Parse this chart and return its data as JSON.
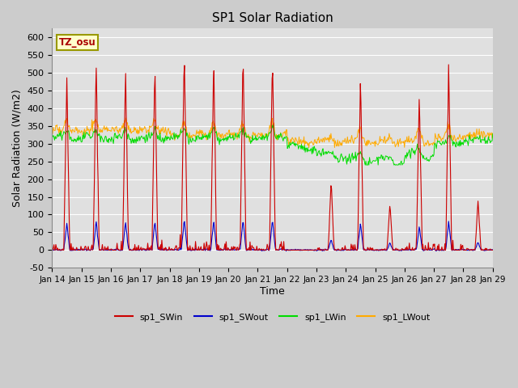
{
  "title": "SP1 Solar Radiation",
  "ylabel": "Solar Radiation (W/m2)",
  "xlabel": "Time",
  "ylim": [
    -50,
    625
  ],
  "yticks": [
    -50,
    0,
    50,
    100,
    150,
    200,
    250,
    300,
    350,
    400,
    450,
    500,
    550,
    600
  ],
  "colors": {
    "SWin": "#cc0000",
    "SWout": "#0000cc",
    "LWin": "#00dd00",
    "LWout": "#ffaa00"
  },
  "legend_labels": [
    "sp1_SWin",
    "sp1_SWout",
    "sp1_LWin",
    "sp1_LWout"
  ],
  "tz_label": "TZ_osu",
  "fig_bg": "#cccccc",
  "plot_bg": "#e0e0e0",
  "grid_color": "white",
  "title_fontsize": 11,
  "n_days": 15,
  "start_day": 14
}
